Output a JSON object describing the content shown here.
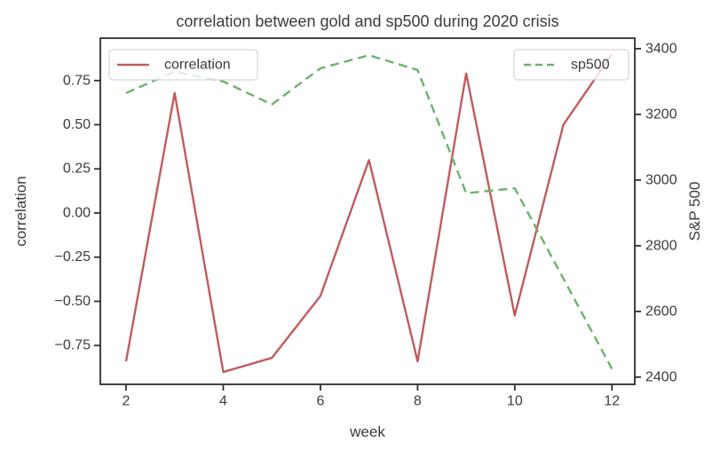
{
  "title": "correlation between gold and sp500 during 2020 crisis",
  "chart_data": {
    "type": "line",
    "title": "correlation between gold and sp500 during 2020 crisis",
    "x_label": "week",
    "y_label_left": "correlation",
    "y_label_right": "S&P 500",
    "x": [
      2,
      3,
      4,
      5,
      6,
      7,
      8,
      9,
      10,
      11,
      12
    ],
    "series": [
      {
        "name": "correlation",
        "axis": "left",
        "color": "#c05c5c",
        "line_style": "solid",
        "values": [
          -0.84,
          0.68,
          -0.9,
          -0.82,
          -0.47,
          0.3,
          -0.84,
          0.79,
          -0.58,
          0.5,
          0.9
        ]
      },
      {
        "name": "sp500",
        "axis": "right",
        "color": "#6ab36a",
        "line_style": "dashed",
        "values": [
          3265,
          3330,
          3300,
          3230,
          3340,
          3380,
          3335,
          2960,
          2975,
          2700,
          2425
        ]
      }
    ],
    "x_ticks": [
      2,
      4,
      6,
      8,
      10,
      12
    ],
    "y_ticks_left": [
      0.75,
      0.5,
      0.25,
      0.0,
      -0.25,
      -0.5,
      -0.75
    ],
    "y_ticks_right": [
      3400,
      3200,
      3000,
      2800,
      2600,
      2400
    ],
    "xlim": [
      1.47,
      12.47
    ],
    "ylim_left": [
      -0.97,
      0.99
    ],
    "ylim_right": [
      2378,
      3432
    ],
    "grid": false,
    "legend_positions": [
      "upper left",
      "upper right"
    ]
  }
}
